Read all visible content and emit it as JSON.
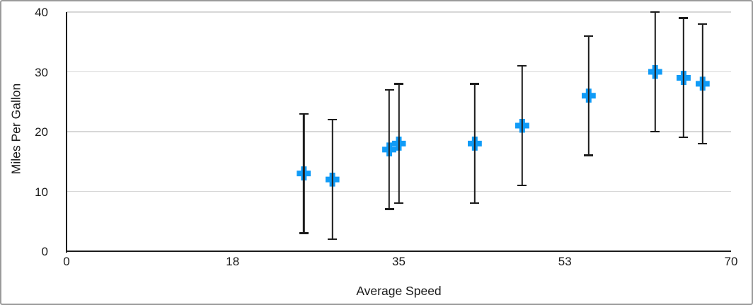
{
  "window": {
    "background_color": "#ffffff",
    "border_color": "#9b9b9b"
  },
  "chart_data": {
    "type": "scatter",
    "title": "",
    "xlabel": "Average Speed",
    "ylabel": "Miles Per Gallon",
    "xlim": [
      0,
      70
    ],
    "ylim": [
      0,
      40
    ],
    "x_ticks": [
      {
        "pos": 0,
        "label": "0"
      },
      {
        "pos": 17.5,
        "label": "18"
      },
      {
        "pos": 35,
        "label": "35"
      },
      {
        "pos": 52.5,
        "label": "53"
      },
      {
        "pos": 70,
        "label": "70"
      }
    ],
    "y_ticks": [
      {
        "pos": 0,
        "label": "0"
      },
      {
        "pos": 10,
        "label": "10"
      },
      {
        "pos": 20,
        "label": "20"
      },
      {
        "pos": 30,
        "label": "30"
      },
      {
        "pos": 40,
        "label": "40"
      }
    ],
    "grid": {
      "horizontal": true,
      "vertical": false,
      "color": "#d7d7d7"
    },
    "legend": "none",
    "colors": {
      "axis": "#1c1c1c",
      "text": "#1a1a1a",
      "marker": "#109bf7",
      "error_bar": "#1c1c1c"
    },
    "series": [
      {
        "name": "Miles Per Gallon",
        "marker": "plus",
        "marker_color": "#109bf7",
        "error_bars": {
          "type": "fixed",
          "value": 10,
          "direction": "both",
          "color": "#1c1c1c"
        },
        "points": [
          {
            "x": 25,
            "y": 13
          },
          {
            "x": 28,
            "y": 12
          },
          {
            "x": 34,
            "y": 17
          },
          {
            "x": 35,
            "y": 18
          },
          {
            "x": 43,
            "y": 18
          },
          {
            "x": 48,
            "y": 21
          },
          {
            "x": 55,
            "y": 26
          },
          {
            "x": 62,
            "y": 30
          },
          {
            "x": 65,
            "y": 29
          },
          {
            "x": 67,
            "y": 28
          }
        ]
      }
    ]
  }
}
